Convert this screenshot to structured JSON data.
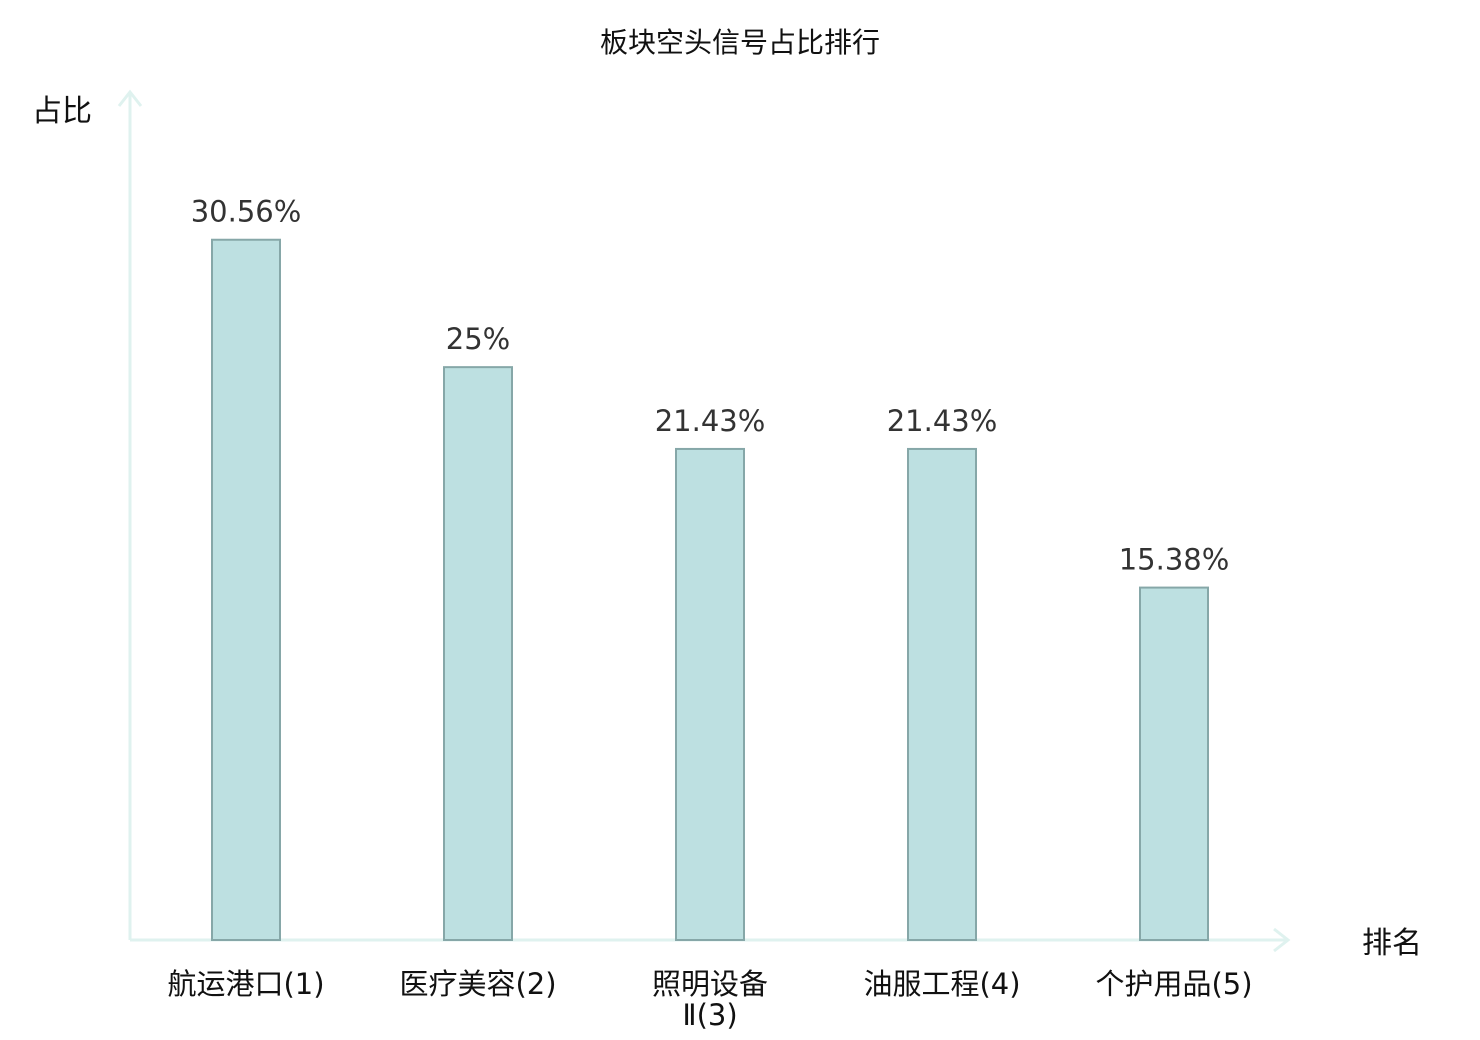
{
  "chart_data": {
    "type": "bar",
    "title": "板块空头信号占比排行",
    "xlabel": "排名",
    "ylabel": "占比",
    "categories": [
      [
        "航运港口(1)"
      ],
      [
        "医疗美容(2)"
      ],
      [
        "照明设备",
        "Ⅱ(3)"
      ],
      [
        "油服工程(4)"
      ],
      [
        "个护用品(5)"
      ]
    ],
    "values": [
      30.56,
      25,
      21.43,
      21.43,
      15.38
    ],
    "value_labels": [
      "30.56%",
      "25%",
      "21.43%",
      "21.43%",
      "15.38%"
    ],
    "ylim": [
      0,
      35
    ],
    "grid": false,
    "colors": {
      "bar_fill": "#bde0e1",
      "bar_stroke": "#86a7a8",
      "axis": "#dff2ef",
      "highlight_label": "#e0191a",
      "label": "#111111"
    },
    "highlight_index": 0
  }
}
